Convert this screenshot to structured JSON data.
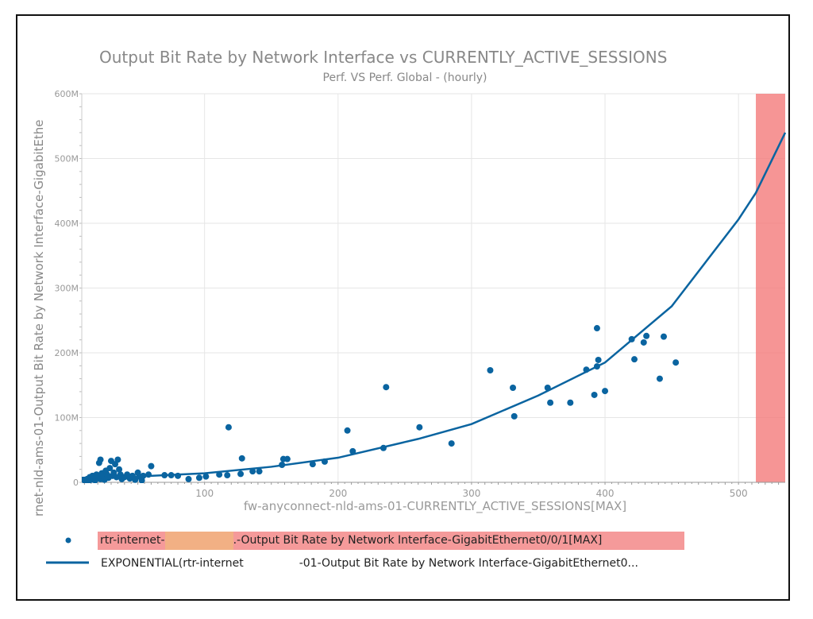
{
  "chart_data": {
    "type": "scatter",
    "title": "Output Bit Rate by Network Interface vs CURRENTLY_ACTIVE_SESSIONS",
    "subtitle": "Perf. VS Perf. Global - (hourly)",
    "xlabel": "fw-anyconnect-nld-ams-01-CURRENTLY_ACTIVE_SESSIONS[MAX]",
    "ylabel": "rnet-nld-ams-01-Output Bit Rate by Network Interface-GigabitEthe",
    "xlim": [
      8,
      535
    ],
    "ylim": [
      0,
      600
    ],
    "x_ticks": [
      100,
      200,
      300,
      400,
      500
    ],
    "x_tick_labels": [
      "100",
      "200",
      "300",
      "400",
      "500"
    ],
    "y_ticks": [
      0,
      100,
      200,
      300,
      400,
      500,
      600
    ],
    "y_tick_labels": [
      "0",
      "100M",
      "200M",
      "300M",
      "400M",
      "500M",
      "600M"
    ],
    "grid": true,
    "highlight_band": {
      "x_from": 513,
      "x_to": 535,
      "color": "#f47a7a"
    },
    "colors": {
      "series": "#0a64a0",
      "band": "#f47a7a",
      "legend_highlight": "#f59a9a",
      "redaction": "#f2b084"
    },
    "series": [
      {
        "name": "rtr-internet-[redacted].-Output Bit Rate by Network Interface-GigabitEthernet0/0/1[MAX]",
        "type": "scatter",
        "x": [
          10,
          12,
          13,
          14,
          15,
          16,
          17,
          18,
          19,
          20,
          21,
          22,
          22,
          23,
          24,
          25,
          26,
          27,
          28,
          29,
          30,
          31,
          32,
          33,
          34,
          35,
          36,
          37,
          38,
          40,
          42,
          44,
          46,
          48,
          50,
          52,
          53,
          54,
          58,
          60,
          70,
          75,
          80,
          88,
          96,
          101,
          111,
          117,
          118,
          127,
          128,
          136,
          141,
          158,
          159,
          162,
          181,
          190,
          207,
          211,
          234,
          236,
          261,
          285,
          314,
          331,
          332,
          357,
          359,
          374,
          386,
          392,
          394,
          394,
          395,
          400,
          420,
          422,
          429,
          431,
          441,
          444,
          453
        ],
        "y": [
          3,
          5,
          2,
          8,
          4,
          10,
          6,
          3,
          12,
          8,
          30,
          35,
          5,
          14,
          9,
          4,
          18,
          12,
          7,
          22,
          33,
          10,
          15,
          28,
          8,
          35,
          20,
          12,
          5,
          8,
          12,
          6,
          10,
          4,
          15,
          8,
          3,
          10,
          12,
          25,
          11,
          11,
          10,
          5,
          7,
          9,
          12,
          11,
          85,
          13,
          37,
          17,
          17,
          27,
          36,
          36,
          28,
          32,
          80,
          48,
          53,
          147,
          85,
          60,
          173,
          146,
          102,
          146,
          123,
          123,
          174,
          135,
          179,
          238,
          189,
          141,
          221,
          190,
          216,
          226,
          160,
          225,
          185
        ]
      },
      {
        "name": "EXPONENTIAL(rtr-internet[redacted]-01-Output Bit Rate by Network Interface-GigabitEthernet0...",
        "type": "line",
        "x": [
          8,
          50,
          100,
          150,
          200,
          260,
          300,
          350,
          400,
          450,
          500,
          513,
          535
        ],
        "y": [
          7,
          9,
          14,
          24,
          38,
          67,
          90,
          134,
          185,
          272,
          406,
          447,
          540
        ]
      }
    ],
    "legend": {
      "placement": "bottom-left",
      "entries": [
        {
          "prefix": "rtr-internet-",
          "suffix": ".-Output Bit Rate by Network Interface-GigabitEthernet0/0/1[MAX]"
        },
        {
          "prefix": "EXPONENTIAL(rtr-internet",
          "suffix": "-01-Output Bit Rate by Network Interface-GigabitEthernet0..."
        }
      ]
    }
  }
}
